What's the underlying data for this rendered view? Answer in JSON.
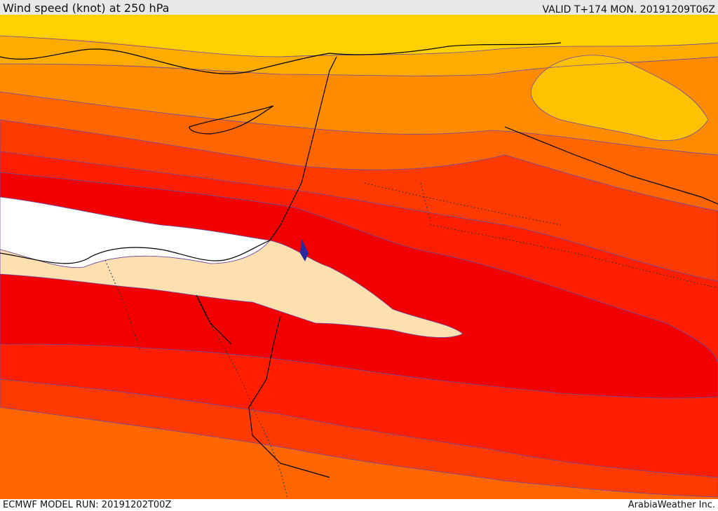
{
  "header": {
    "title": "Wind speed (knot) at 250 hPa",
    "valid": "VALID T+174 MON. 20191209T06Z"
  },
  "footer": {
    "model_run": "ECMWF MODEL RUN: 20191202T00Z",
    "brand": "ArabiaWeather Inc."
  },
  "colors": {
    "band_40_60": "#ffd100",
    "band_60_80": "#ffac00",
    "band_80_100": "#ff8c00",
    "band_100_120": "#ff6600",
    "band_120_140": "#ff3a00",
    "band_140_160": "#ff1e00",
    "band_160_180": "#f20000",
    "band_180_200": "#ffffff",
    "core_max": "#fde0b0",
    "contour_line": "#6a4aa0",
    "coastline": "#000000"
  }
}
